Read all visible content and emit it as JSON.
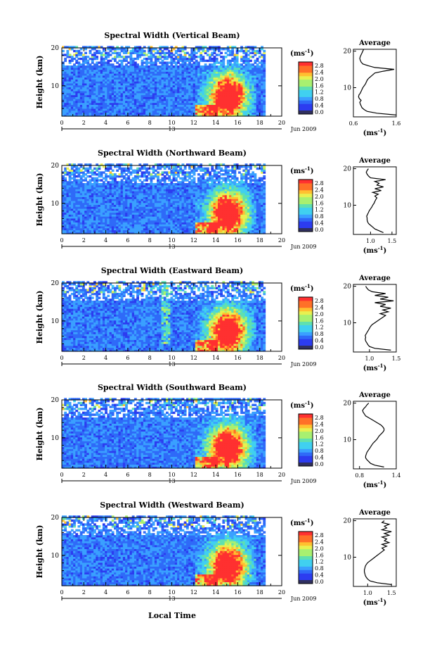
{
  "figure": {
    "xlabel": "Local Time",
    "date_label": "Jun 2009",
    "day_label": "13",
    "colorbar_unit": "(ms",
    "colorbar_unit_sup": "-1",
    "colorbar_unit_close": ")",
    "avg_title": "Average",
    "avg_unit": "(ms",
    "avg_unit_sup": "-1",
    "avg_unit_close": ")",
    "ylabel": "Height (km)"
  },
  "chart_data": [
    {
      "type": "heatmap",
      "title": "Spectral Width (Vertical Beam)",
      "xlim": [
        0,
        20
      ],
      "ylim": [
        2,
        20
      ],
      "xticks": [
        "0",
        "2",
        "4",
        "6",
        "8",
        "10",
        "12",
        "14",
        "16",
        "18",
        "20"
      ],
      "yticks": [
        "10",
        "20"
      ],
      "colorbar_ticks": [
        "0.0",
        "0.4",
        "0.8",
        "1.2",
        "1.6",
        "2.0",
        "2.4",
        "2.8"
      ],
      "avg": {
        "xlim": [
          0.6,
          1.6
        ],
        "xticks": [
          "0.6",
          "1.6"
        ],
        "yticks": [
          "10",
          "20"
        ],
        "profile_x": [
          1.6,
          1.15,
          0.92,
          0.85,
          0.8,
          0.78,
          0.76,
          0.75,
          0.78,
          0.74,
          0.72,
          0.73,
          0.76,
          0.78,
          0.8,
          0.82,
          0.85,
          0.88,
          0.9,
          0.92,
          0.95,
          1.0,
          1.05,
          1.1,
          1.3,
          1.55,
          1.1,
          0.95,
          0.82,
          0.78,
          0.76,
          0.75,
          0.76,
          0.78,
          0.8,
          0.82,
          0.84,
          0.9,
          1.0,
          1.2,
          1.35
        ],
        "profile_h": [
          2.5,
          3,
          3.5,
          4,
          4.5,
          5,
          5.5,
          6,
          6.5,
          7,
          7.5,
          8,
          8.5,
          9,
          9.5,
          10,
          10.5,
          11,
          11.5,
          12,
          12.5,
          13,
          13.5,
          14,
          14.5,
          15,
          15.5,
          16,
          16.5,
          17,
          17.5,
          18,
          18.5,
          19,
          19.5,
          20,
          20.5,
          21,
          21.5,
          22,
          22.5
        ]
      }
    },
    {
      "type": "heatmap",
      "title": "Spectral Width (Northward Beam)",
      "xlim": [
        0,
        20
      ],
      "ylim": [
        2,
        20
      ],
      "xticks": [
        "0",
        "2",
        "4",
        "6",
        "8",
        "10",
        "12",
        "14",
        "16",
        "18",
        "20"
      ],
      "yticks": [
        "10",
        "20"
      ],
      "colorbar_ticks": [
        "0.0",
        "0.4",
        "0.8",
        "1.2",
        "1.6",
        "2.0",
        "2.4",
        "2.8"
      ],
      "avg": {
        "xlim": [
          0.6,
          1.6
        ],
        "xticks": [
          "1.0",
          "1.5"
        ],
        "yticks": [
          "10",
          "20"
        ],
        "profile_x": [
          1.3,
          1.2,
          1.1,
          1.05,
          1.0,
          0.95,
          0.93,
          0.92,
          0.92,
          0.91,
          0.93,
          0.95,
          0.97,
          1.0,
          1.03,
          1.05,
          1.08,
          1.1,
          1.12,
          1.15,
          1.1,
          1.18,
          1.05,
          1.25,
          1.1,
          1.3,
          1.15,
          1.2,
          1.1,
          1.35,
          1.0,
          0.95,
          0.92,
          0.9,
          0.92,
          0.95
        ],
        "profile_h": [
          2.5,
          3,
          3.5,
          4,
          4.5,
          5,
          5.5,
          6,
          6.5,
          7,
          7.5,
          8,
          8.5,
          9,
          9.5,
          10,
          10.5,
          11,
          11.5,
          12,
          12.5,
          13,
          13.5,
          14,
          14.5,
          15,
          15.5,
          16,
          16.5,
          17,
          17.5,
          18,
          18.5,
          19,
          19.5,
          20
        ]
      }
    },
    {
      "type": "heatmap",
      "title": "Spectral Width (Eastward Beam)",
      "xlim": [
        0,
        20
      ],
      "ylim": [
        2,
        20
      ],
      "xticks": [
        "0",
        "2",
        "4",
        "6",
        "8",
        "10",
        "12",
        "14",
        "16",
        "18",
        "20"
      ],
      "yticks": [
        "10",
        "20"
      ],
      "colorbar_ticks": [
        "0.0",
        "0.4",
        "0.8",
        "1.2",
        "1.6",
        "2.0",
        "2.4",
        "2.8"
      ],
      "avg": {
        "xlim": [
          0.7,
          1.5
        ],
        "xticks": [
          "1.0",
          "1.5"
        ],
        "yticks": [
          "10",
          "20"
        ],
        "profile_x": [
          1.4,
          1.1,
          1.0,
          0.97,
          0.95,
          0.93,
          0.92,
          0.93,
          0.92,
          0.94,
          0.96,
          0.98,
          1.0,
          1.02,
          1.05,
          1.1,
          1.15,
          1.2,
          1.25,
          1.3,
          1.2,
          1.35,
          1.25,
          1.4,
          1.2,
          1.3,
          1.1,
          1.45,
          1.2,
          1.35,
          1.1,
          1.3,
          1.05,
          0.98,
          0.95,
          0.93
        ],
        "profile_h": [
          2.5,
          3,
          3.5,
          4,
          4.5,
          5,
          5.5,
          6,
          6.5,
          7,
          7.5,
          8,
          8.5,
          9,
          9.5,
          10,
          10.5,
          11,
          11.5,
          12,
          12.5,
          13,
          13.5,
          14,
          14.5,
          15,
          15.5,
          16,
          16.5,
          17,
          17.5,
          18,
          18.5,
          19,
          19.5,
          20
        ]
      }
    },
    {
      "type": "heatmap",
      "title": "Spectral Width (Southward Beam)",
      "xlim": [
        0,
        20
      ],
      "ylim": [
        2,
        20
      ],
      "xticks": [
        "0",
        "2",
        "4",
        "6",
        "8",
        "10",
        "12",
        "14",
        "16",
        "18",
        "20"
      ],
      "yticks": [
        "10",
        "20"
      ],
      "colorbar_ticks": [
        "0.0",
        "0.4",
        "0.8",
        "1.2",
        "1.6",
        "2.0",
        "2.4",
        "2.8"
      ],
      "avg": {
        "xlim": [
          0.7,
          1.4
        ],
        "xticks": [
          "0.8",
          "1.4"
        ],
        "yticks": [
          "10",
          "20"
        ],
        "profile_x": [
          1.2,
          1.05,
          0.98,
          0.95,
          0.92,
          0.9,
          0.9,
          0.91,
          0.92,
          0.94,
          0.96,
          0.98,
          1.0,
          1.02,
          1.05,
          1.08,
          1.1,
          1.12,
          1.15,
          1.18,
          1.2,
          1.2,
          1.18,
          1.15,
          1.1,
          1.05,
          1.0,
          0.95,
          0.9,
          0.88,
          0.86,
          0.85,
          0.87,
          0.9,
          0.92,
          0.95
        ],
        "profile_h": [
          2.5,
          3,
          3.5,
          4,
          4.5,
          5,
          5.5,
          6,
          6.5,
          7,
          7.5,
          8,
          8.5,
          9,
          9.5,
          10,
          10.5,
          11,
          11.5,
          12,
          12.5,
          13,
          13.5,
          14,
          14.5,
          15,
          15.5,
          16,
          16.5,
          17,
          17.5,
          18,
          18.5,
          19,
          19.5,
          20
        ]
      }
    },
    {
      "type": "heatmap",
      "title": "Spectral Width (Westward Beam)",
      "xlim": [
        0,
        20
      ],
      "ylim": [
        2,
        20
      ],
      "xticks": [
        "0",
        "2",
        "4",
        "6",
        "8",
        "10",
        "12",
        "14",
        "16",
        "18",
        "20"
      ],
      "yticks": [
        "10",
        "20"
      ],
      "colorbar_ticks": [
        "0.0",
        "0.4",
        "0.8",
        "1.2",
        "1.6",
        "2.0",
        "2.4",
        "2.8"
      ],
      "avg": {
        "xlim": [
          0.7,
          1.6
        ],
        "xticks": [
          "1.0",
          "1.5"
        ],
        "yticks": [
          "10",
          "20"
        ],
        "profile_x": [
          1.5,
          1.2,
          1.05,
          1.0,
          0.97,
          0.95,
          0.94,
          0.93,
          0.93,
          0.94,
          0.95,
          0.97,
          1.0,
          1.05,
          1.1,
          1.15,
          1.2,
          1.25,
          1.3,
          1.35,
          1.3,
          1.4,
          1.3,
          1.45,
          1.35,
          1.4,
          1.3,
          1.45,
          1.35,
          1.5,
          1.3,
          1.4,
          1.35,
          1.45,
          1.3,
          1.35
        ],
        "profile_h": [
          2.5,
          3,
          3.5,
          4,
          4.5,
          5,
          5.5,
          6,
          6.5,
          7,
          7.5,
          8,
          8.5,
          9,
          9.5,
          10,
          10.5,
          11,
          11.5,
          12,
          12.5,
          13,
          13.5,
          14,
          14.5,
          15,
          15.5,
          16,
          16.5,
          17,
          17.5,
          18,
          18.5,
          19,
          19.5,
          20
        ]
      }
    }
  ]
}
